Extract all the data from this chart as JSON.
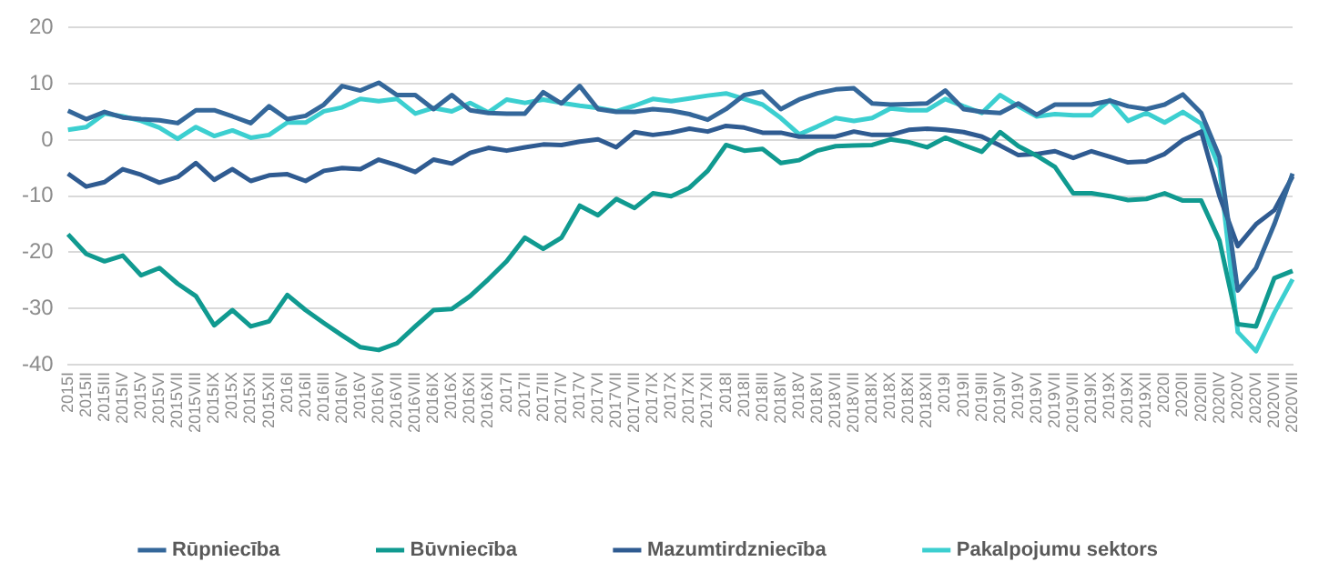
{
  "chart_data": {
    "type": "line",
    "categories": [
      "2015I",
      "2015II",
      "2015III",
      "2015IV",
      "2015V",
      "2015VI",
      "2015VII",
      "2015VIII",
      "2015IX",
      "2015X",
      "2015XI",
      "2015XII",
      "2016I",
      "2016II",
      "2016III",
      "2016IV",
      "2016V",
      "2016VI",
      "2016VII",
      "2016VIII",
      "2016IX",
      "2016X",
      "2016XI",
      "2016XII",
      "2017I",
      "2017II",
      "2017III",
      "2017IV",
      "2017V",
      "2017VI",
      "2017VII",
      "2017VIII",
      "2017IX",
      "2017X",
      "2017XI",
      "2017XII",
      "2018I",
      "2018II",
      "2018III",
      "2018IV",
      "2018V",
      "2018VI",
      "2018VII",
      "2018VIII",
      "2018IX",
      "2018X",
      "2018XI",
      "2018XII",
      "2019I",
      "2019II",
      "2019III",
      "2019IV",
      "2019V",
      "2019VI",
      "2019VII",
      "2019VIII",
      "2019IX",
      "2019X",
      "2019XI",
      "2019XII",
      "2020I",
      "2020II",
      "2020III",
      "2020IV",
      "2020V",
      "2020VI",
      "2020VII",
      "2020VIII"
    ],
    "series": [
      {
        "name": "Rūpniecība",
        "color": "#34679a",
        "values": [
          5.2,
          3.7,
          5,
          4,
          3.7,
          3.5,
          3,
          5.3,
          5.3,
          4.2,
          3,
          6,
          3.7,
          4.3,
          6.3,
          9.6,
          8.8,
          10.2,
          8,
          8,
          5.5,
          8,
          5.3,
          4.8,
          4.7,
          4.7,
          8.5,
          6.5,
          9.6,
          5.5,
          5,
          5,
          5.5,
          5.2,
          4.6,
          3.6,
          5.5,
          8,
          8.6,
          5.5,
          7.2,
          8.3,
          9,
          9.2,
          6.5,
          6.3,
          6.4,
          6.5,
          8.8,
          5.5,
          5,
          4.8,
          6.5,
          4.5,
          6.3,
          6.3,
          6.3,
          7,
          6,
          5.5,
          6.3,
          8.1,
          4.8,
          -3,
          -26.8,
          -22.8,
          -15,
          -6
        ]
      },
      {
        "name": "Būvniecība",
        "color": "#109a90",
        "values": [
          -16.8,
          -20.3,
          -21.6,
          -20.6,
          -24.1,
          -22.8,
          -25.6,
          -27.8,
          -33,
          -30.3,
          -33.2,
          -32.3,
          -27.6,
          -30.3,
          -32.6,
          -34.8,
          -36.9,
          -37.4,
          -36.2,
          -33.2,
          -30.3,
          -30.1,
          -27.8,
          -24.8,
          -21.6,
          -17.4,
          -19.4,
          -17.4,
          -11.7,
          -13.4,
          -10.5,
          -12.1,
          -9.5,
          -10,
          -8.5,
          -5.5,
          -0.9,
          -1.9,
          -1.6,
          -4.1,
          -3.6,
          -1.9,
          -1.1,
          -1,
          -0.9,
          0.1,
          -0.4,
          -1.3,
          0.4,
          -0.9,
          -2.1,
          1.4,
          -1.1,
          -2.8,
          -4.8,
          -9.5,
          -9.5,
          -10,
          -10.7,
          -10.5,
          -9.5,
          -10.8,
          -10.8,
          -17.9,
          -32.8,
          -33.2,
          -24.6,
          -23.3
        ]
      },
      {
        "name": "Mazumtirdzniecība",
        "color": "#2f5b91",
        "values": [
          -6,
          -8.3,
          -7.5,
          -5.2,
          -6.2,
          -7.6,
          -6.6,
          -4.1,
          -7.1,
          -5.2,
          -7.3,
          -6.3,
          -6.1,
          -7.3,
          -5.5,
          -5,
          -5.2,
          -3.5,
          -4.5,
          -5.7,
          -3.5,
          -4.2,
          -2.3,
          -1.4,
          -1.9,
          -1.3,
          -0.8,
          -0.9,
          -0.3,
          0.1,
          -1.3,
          1.4,
          0.9,
          1.3,
          2,
          1.5,
          2.5,
          2.2,
          1.3,
          1.3,
          0.6,
          0.6,
          0.6,
          1.5,
          0.9,
          0.9,
          1.8,
          2,
          1.8,
          1.4,
          0.6,
          -1,
          -2.7,
          -2.5,
          -2,
          -3.2,
          -2,
          -3,
          -4,
          -3.8,
          -2.5,
          0,
          1.5,
          -10,
          -18.9,
          -15,
          -12.5,
          -6.5
        ]
      },
      {
        "name": "Pakalpojumu sektors",
        "color": "#3ccfd0",
        "values": [
          1.8,
          2.3,
          4.7,
          4.2,
          3.4,
          2.2,
          0.2,
          2.3,
          0.7,
          1.7,
          0.4,
          0.9,
          3.1,
          3.1,
          5.1,
          5.8,
          7.3,
          6.9,
          7.3,
          4.7,
          5.7,
          5.1,
          6.6,
          4.9,
          7.2,
          6.6,
          7.2,
          6.6,
          6.1,
          5.7,
          5.1,
          6.1,
          7.3,
          6.9,
          7.4,
          7.9,
          8.3,
          7.3,
          6.3,
          3.9,
          1,
          2.4,
          3.9,
          3.4,
          3.9,
          5.6,
          5.3,
          5.3,
          7.3,
          6,
          4.8,
          8,
          6,
          4.2,
          4.6,
          4.4,
          4.4,
          7.1,
          3.4,
          4.8,
          3.1,
          5,
          2.9,
          -5,
          -34.2,
          -37.6,
          -30.8,
          -24.8
        ]
      }
    ],
    "ylim": [
      -40,
      20
    ],
    "yticks": [
      -40,
      -30,
      -20,
      -10,
      0,
      10,
      20
    ],
    "grid": "y",
    "legend": "bottom",
    "marker": "none",
    "line_style": "solid"
  }
}
